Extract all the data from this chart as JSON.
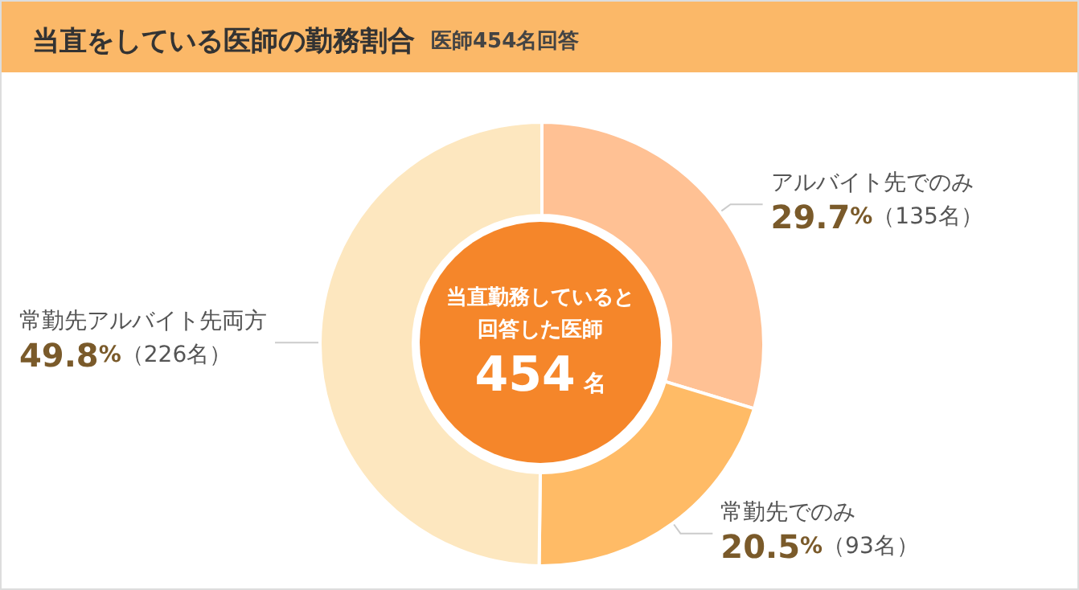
{
  "chart_data": {
    "type": "donut",
    "title": "当直をしている医師の勤務割合",
    "subtitle": "医師454名回答",
    "categories": [
      "アルバイト先でのみ",
      "常勤先でのみ",
      "常勤先アルバイト先両方"
    ],
    "values": [
      29.7,
      20.5,
      49.8
    ],
    "colors": [
      "#ffc194",
      "#ffbb66",
      "#fde7bf"
    ],
    "value_labels": [
      "29.7%（135名）",
      "20.5%（93名）",
      "49.8%（226名）"
    ],
    "annotations": [
      "当直勤務していると回答した医師",
      "454名"
    ]
  }
}
